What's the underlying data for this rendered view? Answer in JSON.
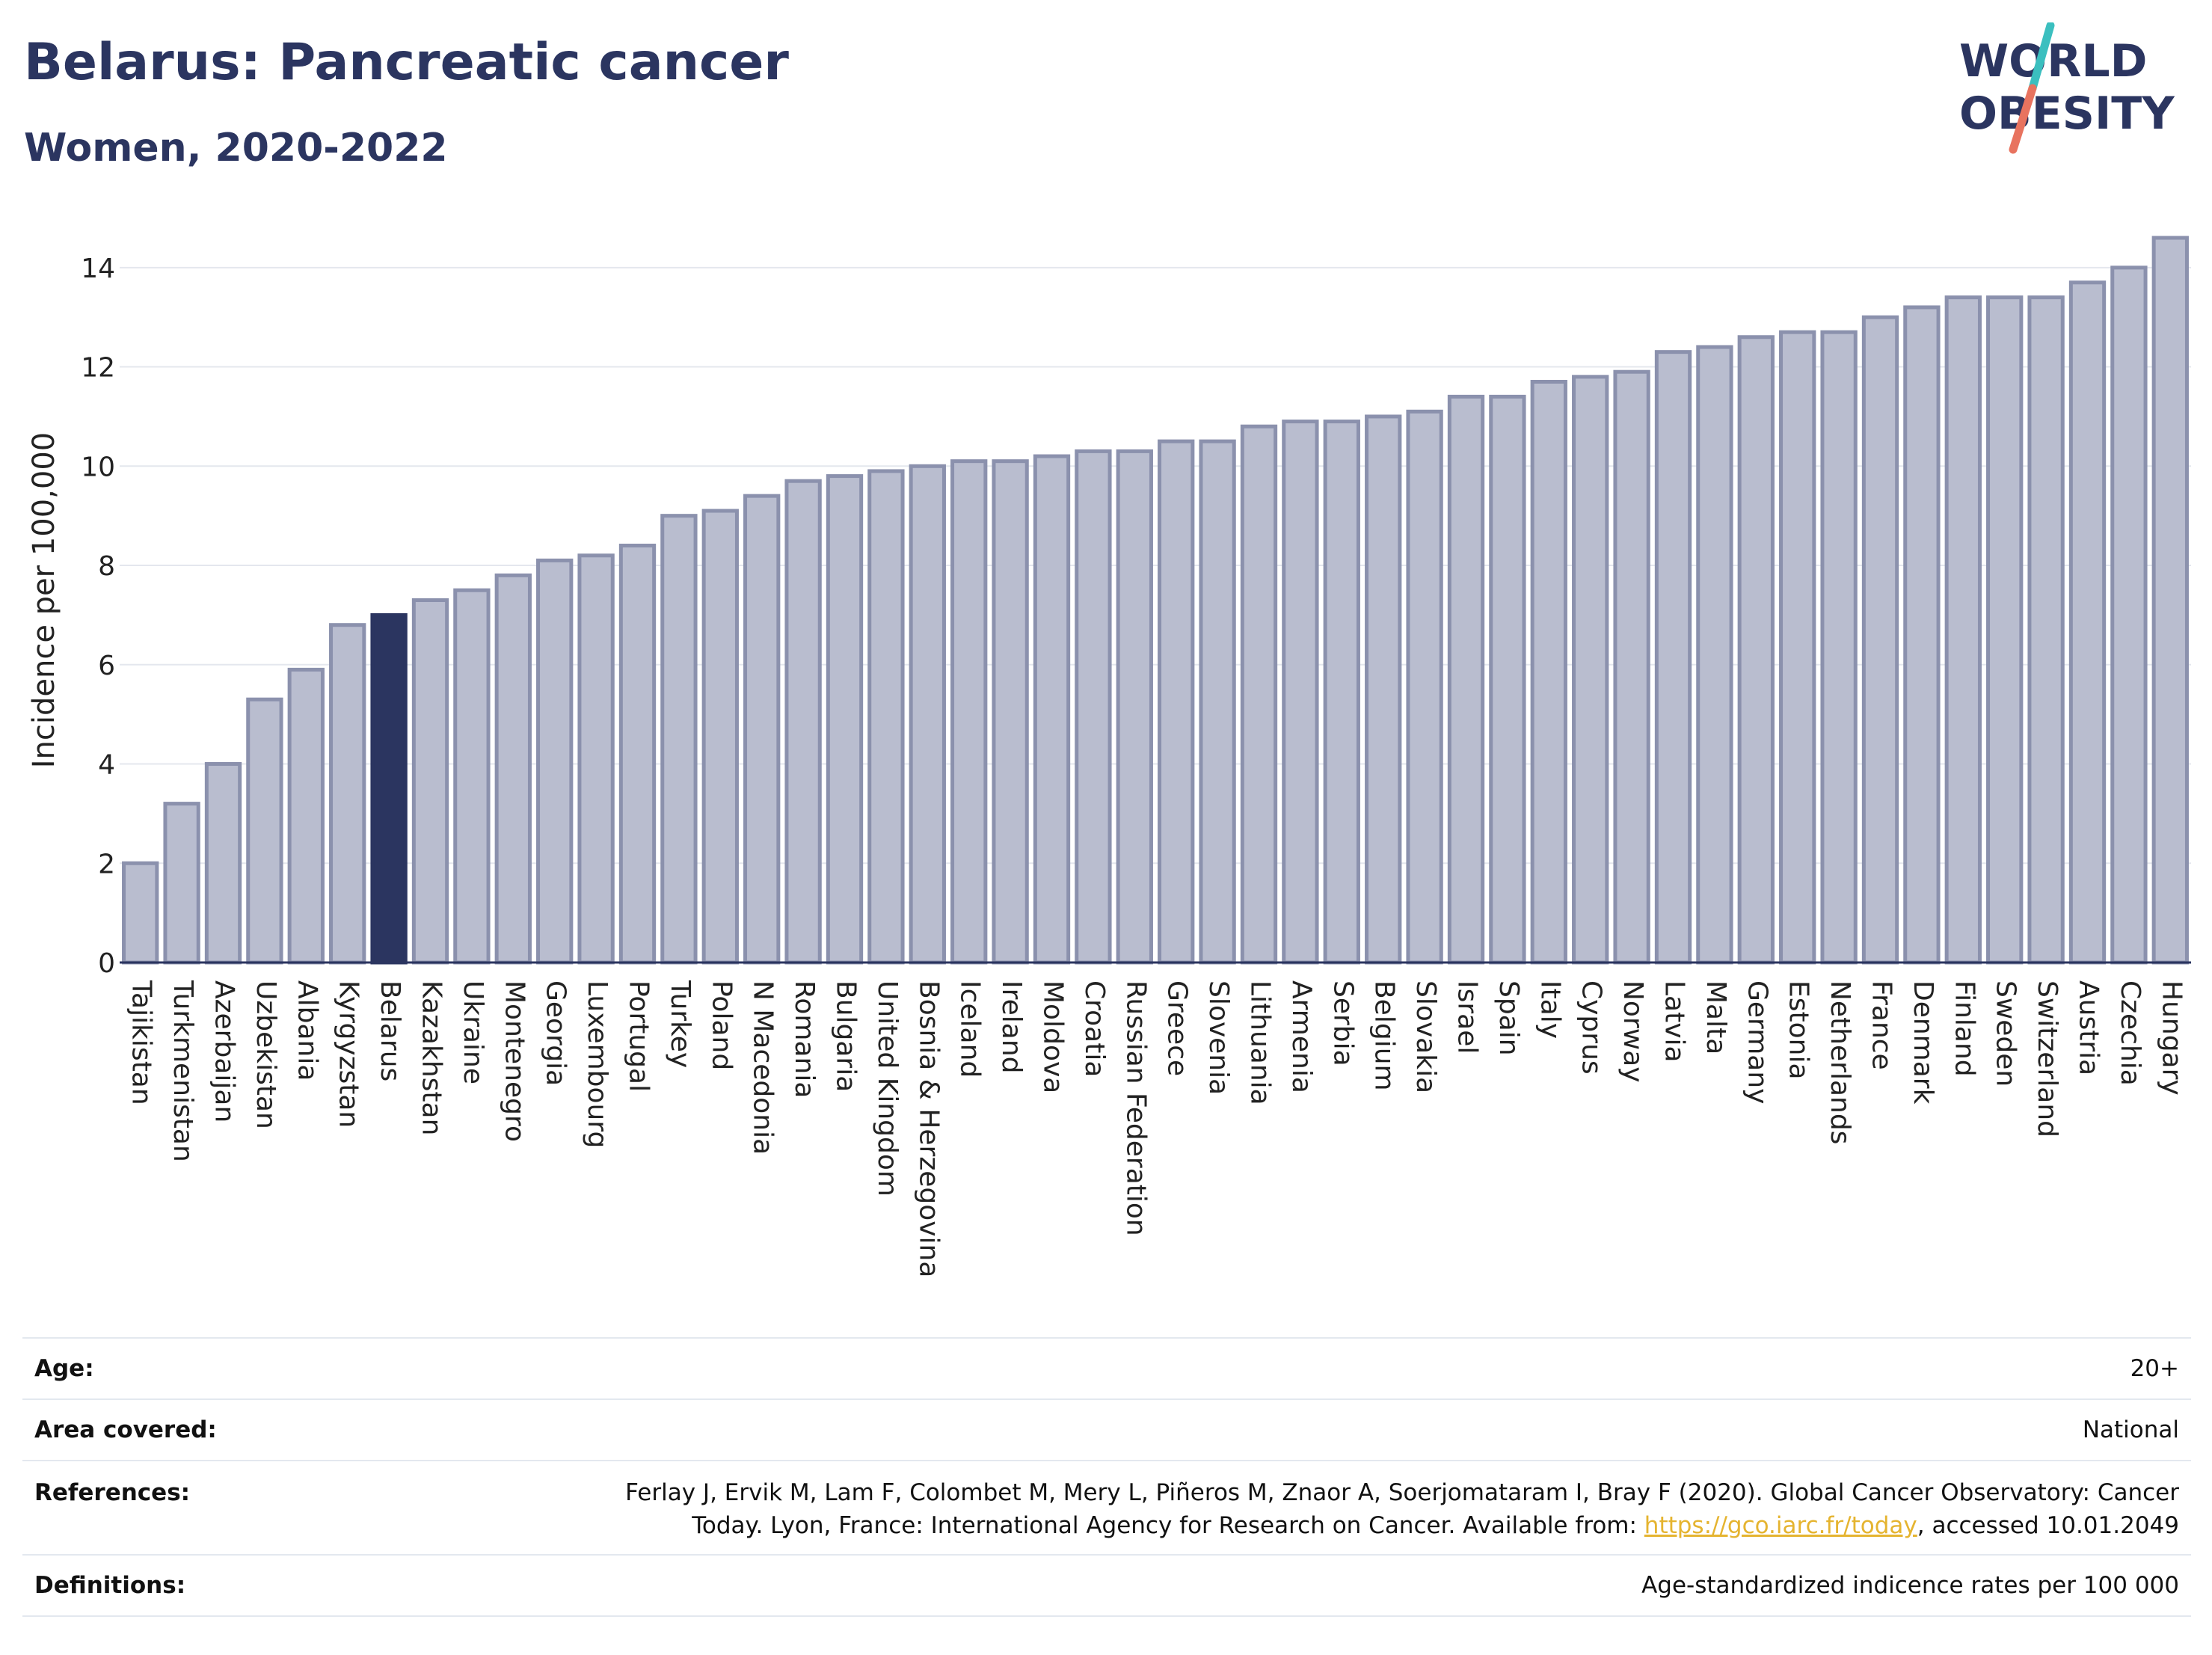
{
  "header": {
    "title": "Belarus: Pancreatic cancer",
    "subtitle": "Women, 2020-2022"
  },
  "logo": {
    "line1": "WORLD",
    "line2": "OBESITY"
  },
  "colors": {
    "highlight": "#2b3560",
    "bar_fill": "#b9bdcf",
    "bar_stroke": "#8b91ad",
    "title": "#2b3560",
    "link": "#e5b430",
    "logo_slash_teal": "#3bbfbf",
    "logo_slash_coral": "#e8735f"
  },
  "chart_data": {
    "type": "bar",
    "title": "",
    "xlabel": "",
    "ylabel": "Incidence per 100,000",
    "ylim": [
      0,
      14.6
    ],
    "yticks": [
      0,
      2,
      4,
      6,
      8,
      10,
      12,
      14
    ],
    "grid": true,
    "highlight_category": "Belarus",
    "categories": [
      "Tajikistan",
      "Turkmenistan",
      "Azerbaijan",
      "Uzbekistan",
      "Albania",
      "Kyrgyzstan",
      "Belarus",
      "Kazakhstan",
      "Ukraine",
      "Montenegro",
      "Georgia",
      "Luxembourg",
      "Portugal",
      "Turkey",
      "Poland",
      "N Macedonia",
      "Romania",
      "Bulgaria",
      "United Kingdom",
      "Bosnia & Herzegovina",
      "Iceland",
      "Ireland",
      "Moldova",
      "Croatia",
      "Russian Federation",
      "Greece",
      "Slovenia",
      "Lithuania",
      "Armenia",
      "Serbia",
      "Belgium",
      "Slovakia",
      "Israel",
      "Spain",
      "Italy",
      "Cyprus",
      "Norway",
      "Latvia",
      "Malta",
      "Germany",
      "Estonia",
      "Netherlands",
      "France",
      "Denmark",
      "Finland",
      "Sweden",
      "Switzerland",
      "Austria",
      "Czechia",
      "Hungary"
    ],
    "values": [
      2.0,
      3.2,
      4.0,
      5.3,
      5.9,
      6.8,
      7.0,
      7.3,
      7.5,
      7.8,
      8.1,
      8.2,
      8.4,
      9.0,
      9.1,
      9.4,
      9.7,
      9.8,
      9.9,
      10.0,
      10.1,
      10.1,
      10.2,
      10.3,
      10.3,
      10.5,
      10.5,
      10.8,
      10.9,
      10.9,
      11.0,
      11.1,
      11.4,
      11.4,
      11.7,
      11.8,
      11.9,
      12.3,
      12.4,
      12.6,
      12.7,
      12.7,
      13.0,
      13.2,
      13.4,
      13.4,
      13.4,
      13.7,
      14.0,
      14.6
    ]
  },
  "meta": {
    "age_label": "Age:",
    "age_value": "20+",
    "area_label": "Area covered:",
    "area_value": "National",
    "references_label": "References:",
    "references_line1": "Ferlay J, Ervik M, Lam F, Colombet M, Mery L, Piñeros M, Znaor A, Soerjomataram I, Bray F (2020). Global Cancer Observatory: Cancer",
    "references_line2_pre": "Today. Lyon, France: International Agency for Research on Cancer. Available from: ",
    "references_link": "https://gco.iarc.fr/today",
    "references_line2_post": ", accessed 10.01.2049",
    "definitions_label": "Definitions:",
    "definitions_value": "Age-standardized indicence rates per 100 000"
  }
}
